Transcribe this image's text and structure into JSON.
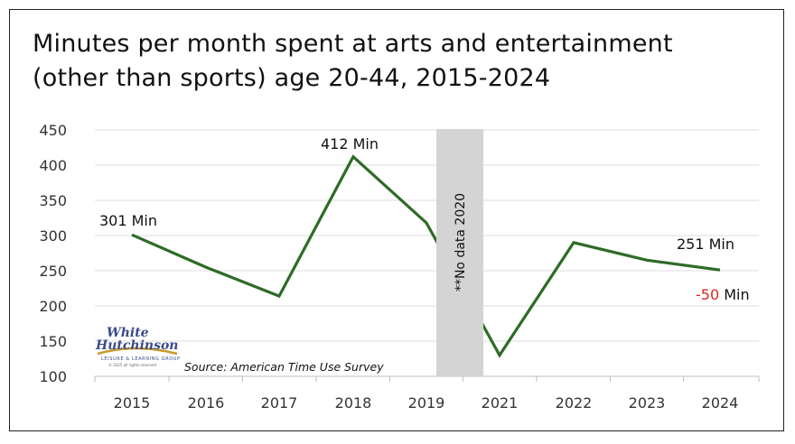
{
  "title_lines": [
    "Minutes per month spent at arts and entertainment",
    "(other than sports) age 20-44, 2015-2024"
  ],
  "chart_data": {
    "type": "line",
    "title": "Minutes per month spent at arts and entertainment (other than sports) age 20-44, 2015-2024",
    "categories": [
      "2015",
      "2016",
      "2017",
      "2018",
      "2019",
      "2021",
      "2022",
      "2023",
      "2024"
    ],
    "series": [
      {
        "name": "Minutes per month",
        "values": [
          301,
          255,
          214,
          412,
          318,
          130,
          290,
          265,
          251
        ]
      }
    ],
    "ylim": [
      100,
      450
    ],
    "yticks": [
      100,
      150,
      200,
      250,
      300,
      350,
      400,
      450
    ],
    "grid": true,
    "line_color": "#2e6b26",
    "gap_label": "**No data 2020",
    "annotations": [
      {
        "text": "301 Min",
        "category": "2015",
        "value": 301
      },
      {
        "text": "412 Min",
        "category": "2018",
        "value": 412
      },
      {
        "text": "251 Min",
        "category": "2024",
        "value": 251
      }
    ],
    "change_annotation": {
      "value": "-50",
      "unit": "Min",
      "color": "#e0261b"
    },
    "source": "Source: American Time Use Survey",
    "logo": {
      "line1": "White",
      "line2": "Hutchinson",
      "tagline": "LEISURE & LEARNING GROUP",
      "copyright": "© 2025 all rights reserved"
    }
  }
}
